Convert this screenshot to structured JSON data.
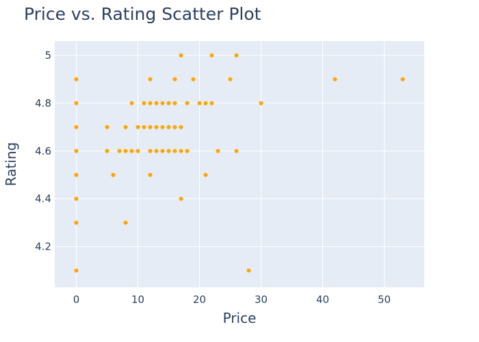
{
  "chart_data": {
    "type": "scatter",
    "title": "Price vs. Rating Scatter Plot",
    "xlabel": "Price",
    "ylabel": "Rating",
    "xlim": [
      -3.5,
      56.5
    ],
    "ylim": [
      4.03,
      5.06
    ],
    "xticks": [
      0,
      10,
      20,
      30,
      40,
      50
    ],
    "yticks": [
      4.2,
      4.4,
      4.6,
      4.8,
      5
    ],
    "xtick_labels": [
      "0",
      "10",
      "20",
      "30",
      "40",
      "50"
    ],
    "ytick_labels": [
      "4.2",
      "4.4",
      "4.6",
      "4.8",
      "5"
    ],
    "grid": true,
    "marker_color": "#FFA500",
    "plot_background": "#E5ECF6",
    "grid_color": "#FFFFFF",
    "points": [
      {
        "x": 0,
        "y": 4.9
      },
      {
        "x": 0,
        "y": 4.8
      },
      {
        "x": 0,
        "y": 4.7
      },
      {
        "x": 0,
        "y": 4.6
      },
      {
        "x": 0,
        "y": 4.5
      },
      {
        "x": 0,
        "y": 4.4
      },
      {
        "x": 0,
        "y": 4.3
      },
      {
        "x": 0,
        "y": 4.1
      },
      {
        "x": 5,
        "y": 4.7
      },
      {
        "x": 5,
        "y": 4.6
      },
      {
        "x": 6,
        "y": 4.5
      },
      {
        "x": 7,
        "y": 4.6
      },
      {
        "x": 8,
        "y": 4.7
      },
      {
        "x": 8,
        "y": 4.6
      },
      {
        "x": 8,
        "y": 4.3
      },
      {
        "x": 9,
        "y": 4.8
      },
      {
        "x": 9,
        "y": 4.6
      },
      {
        "x": 10,
        "y": 4.7
      },
      {
        "x": 10,
        "y": 4.6
      },
      {
        "x": 11,
        "y": 4.8
      },
      {
        "x": 11,
        "y": 4.7
      },
      {
        "x": 12,
        "y": 4.9
      },
      {
        "x": 12,
        "y": 4.8
      },
      {
        "x": 12,
        "y": 4.7
      },
      {
        "x": 12,
        "y": 4.6
      },
      {
        "x": 12,
        "y": 4.5
      },
      {
        "x": 13,
        "y": 4.8
      },
      {
        "x": 13,
        "y": 4.7
      },
      {
        "x": 13,
        "y": 4.6
      },
      {
        "x": 14,
        "y": 4.8
      },
      {
        "x": 14,
        "y": 4.7
      },
      {
        "x": 14,
        "y": 4.6
      },
      {
        "x": 15,
        "y": 4.8
      },
      {
        "x": 15,
        "y": 4.7
      },
      {
        "x": 15,
        "y": 4.6
      },
      {
        "x": 16,
        "y": 4.9
      },
      {
        "x": 16,
        "y": 4.8
      },
      {
        "x": 16,
        "y": 4.7
      },
      {
        "x": 16,
        "y": 4.6
      },
      {
        "x": 17,
        "y": 5.0
      },
      {
        "x": 17,
        "y": 4.7
      },
      {
        "x": 17,
        "y": 4.6
      },
      {
        "x": 17,
        "y": 4.4
      },
      {
        "x": 18,
        "y": 4.8
      },
      {
        "x": 18,
        "y": 4.6
      },
      {
        "x": 19,
        "y": 4.9
      },
      {
        "x": 20,
        "y": 4.8
      },
      {
        "x": 21,
        "y": 4.8
      },
      {
        "x": 21,
        "y": 4.5
      },
      {
        "x": 22,
        "y": 5.0
      },
      {
        "x": 22,
        "y": 4.8
      },
      {
        "x": 23,
        "y": 4.6
      },
      {
        "x": 25,
        "y": 4.9
      },
      {
        "x": 26,
        "y": 5.0
      },
      {
        "x": 26,
        "y": 4.6
      },
      {
        "x": 28,
        "y": 4.1
      },
      {
        "x": 30,
        "y": 4.8
      },
      {
        "x": 42,
        "y": 4.9
      },
      {
        "x": 53,
        "y": 4.9
      }
    ]
  }
}
